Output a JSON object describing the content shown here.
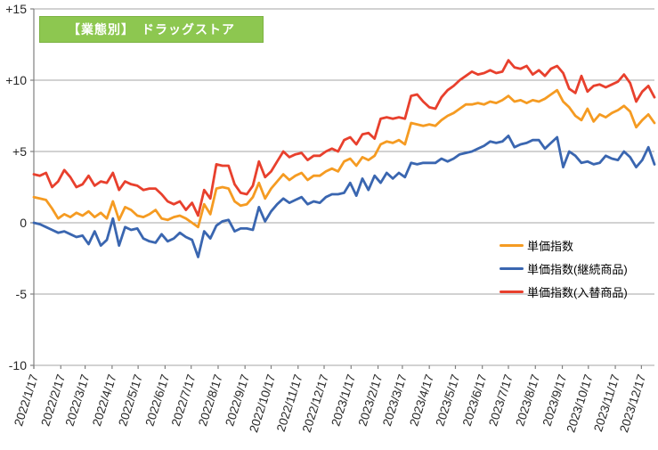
{
  "title": {
    "label": "【業態別】　ドラッグストア",
    "bg_color": "#8DC750",
    "border_color": "#7CB342",
    "text_color": "#FFFFFF"
  },
  "chart_data": {
    "type": "line",
    "title": "【業態別】　ドラッグストア",
    "grid": true,
    "legend_position": "right-middle",
    "y_axis": {
      "min": -10,
      "max": 15,
      "step": 5,
      "tick_values": [
        15,
        10,
        5,
        0,
        -5,
        -10
      ],
      "tick_labels": [
        "+15",
        "+10",
        "+5",
        "0",
        "-5",
        "-10"
      ]
    },
    "x_axis": {
      "unit": "week",
      "total_weeks": 102,
      "tick_labels": [
        "2022/1/17",
        "2022/2/17",
        "2022/3/17",
        "2022/4/17",
        "2022/5/17",
        "2022/6/17",
        "2022/7/17",
        "2022/8/17",
        "2022/9/17",
        "2022/10/17",
        "2022/11/17",
        "2022/12/17",
        "2023/1/17",
        "2023/2/17",
        "2023/3/17",
        "2023/4/17",
        "2023/5/17",
        "2023/6/17",
        "2023/7/17",
        "2023/8/17",
        "2023/9/17",
        "2023/10/17",
        "2023/11/17",
        "2023/12/17"
      ],
      "tick_positions": [
        0,
        4.43,
        8.43,
        12.86,
        17.14,
        21.57,
        25.86,
        30.29,
        34.71,
        39.0,
        43.43,
        47.71,
        52.14,
        56.57,
        60.57,
        65.0,
        69.29,
        73.71,
        78.0,
        82.43,
        86.86,
        91.14,
        95.57,
        99.86
      ]
    },
    "grid_color": "#A6A6A6",
    "axis_color": "#808080",
    "series": [
      {
        "name": "単価指数",
        "color": "#F59B22",
        "values": [
          1.8,
          1.7,
          1.6,
          1.0,
          0.3,
          0.6,
          0.4,
          0.7,
          0.5,
          0.8,
          0.4,
          0.7,
          0.3,
          1.5,
          0.2,
          1.1,
          0.9,
          0.5,
          0.4,
          0.6,
          0.9,
          0.3,
          0.2,
          0.4,
          0.5,
          0.3,
          0.0,
          -0.3,
          1.3,
          0.6,
          2.4,
          2.5,
          2.4,
          1.5,
          1.2,
          1.3,
          1.8,
          2.8,
          1.7,
          2.4,
          2.9,
          3.4,
          3.0,
          3.3,
          3.5,
          3.0,
          3.3,
          3.3,
          3.6,
          3.8,
          3.6,
          4.3,
          4.5,
          4.0,
          4.6,
          4.4,
          4.7,
          5.5,
          5.7,
          5.6,
          5.8,
          5.5,
          7.0,
          6.9,
          6.8,
          6.9,
          6.8,
          7.2,
          7.5,
          7.7,
          8.0,
          8.3,
          8.3,
          8.4,
          8.3,
          8.5,
          8.4,
          8.6,
          8.9,
          8.5,
          8.6,
          8.4,
          8.6,
          8.5,
          8.7,
          9.0,
          9.3,
          8.5,
          8.1,
          7.5,
          7.2,
          8.0,
          7.1,
          7.6,
          7.4,
          7.7,
          7.9,
          8.2,
          7.8,
          6.7,
          7.2,
          7.6,
          7.0
        ]
      },
      {
        "name": "単価指数(継続商品)",
        "color": "#3A66B0",
        "values": [
          0.0,
          -0.1,
          -0.3,
          -0.5,
          -0.7,
          -0.6,
          -0.8,
          -1.0,
          -0.9,
          -1.5,
          -0.6,
          -1.6,
          -1.2,
          0.3,
          -1.6,
          -0.3,
          -0.5,
          -0.4,
          -1.1,
          -1.3,
          -1.4,
          -0.8,
          -1.3,
          -1.1,
          -0.7,
          -1.0,
          -1.2,
          -2.4,
          -0.6,
          -1.1,
          -0.2,
          0.1,
          0.2,
          -0.6,
          -0.4,
          -0.4,
          -0.5,
          1.1,
          0.1,
          0.8,
          1.3,
          1.7,
          1.4,
          1.6,
          1.8,
          1.3,
          1.5,
          1.4,
          1.8,
          2.0,
          2.0,
          2.1,
          2.8,
          1.9,
          3.1,
          2.3,
          3.3,
          2.8,
          3.5,
          3.1,
          3.5,
          3.2,
          4.2,
          4.1,
          4.2,
          4.2,
          4.2,
          4.5,
          4.3,
          4.5,
          4.8,
          4.9,
          5.0,
          5.2,
          5.4,
          5.7,
          5.6,
          5.7,
          6.1,
          5.3,
          5.5,
          5.6,
          5.8,
          5.8,
          5.2,
          5.6,
          6.0,
          3.9,
          5.0,
          4.7,
          4.2,
          4.3,
          4.1,
          4.2,
          4.7,
          4.5,
          4.4,
          5.0,
          4.6,
          3.9,
          4.4,
          5.3,
          4.1
        ]
      },
      {
        "name": "単価指数(入替商品)",
        "color": "#E8402D",
        "values": [
          3.4,
          3.3,
          3.5,
          2.5,
          2.9,
          3.7,
          3.2,
          2.5,
          2.7,
          3.3,
          2.6,
          2.9,
          2.8,
          3.5,
          2.3,
          2.9,
          2.7,
          2.6,
          2.3,
          2.4,
          2.4,
          2.0,
          1.5,
          1.3,
          1.5,
          0.9,
          1.4,
          0.5,
          2.3,
          1.7,
          4.1,
          4.0,
          4.0,
          2.7,
          2.1,
          2.0,
          2.6,
          4.3,
          3.2,
          3.6,
          4.3,
          5.0,
          4.6,
          4.8,
          4.9,
          4.4,
          4.7,
          4.7,
          5.0,
          5.2,
          5.0,
          5.8,
          6.0,
          5.5,
          6.2,
          6.3,
          5.9,
          7.3,
          7.4,
          7.3,
          7.4,
          7.3,
          8.9,
          9.0,
          8.5,
          8.1,
          8.0,
          8.8,
          9.3,
          9.6,
          10.0,
          10.3,
          10.6,
          10.4,
          10.5,
          10.7,
          10.5,
          10.6,
          11.4,
          10.9,
          10.8,
          11.0,
          10.4,
          10.7,
          10.3,
          10.8,
          11.0,
          10.5,
          9.4,
          9.1,
          10.3,
          9.2,
          9.6,
          9.7,
          9.5,
          9.7,
          9.9,
          10.4,
          9.8,
          8.5,
          9.2,
          9.6,
          8.8
        ]
      }
    ]
  }
}
